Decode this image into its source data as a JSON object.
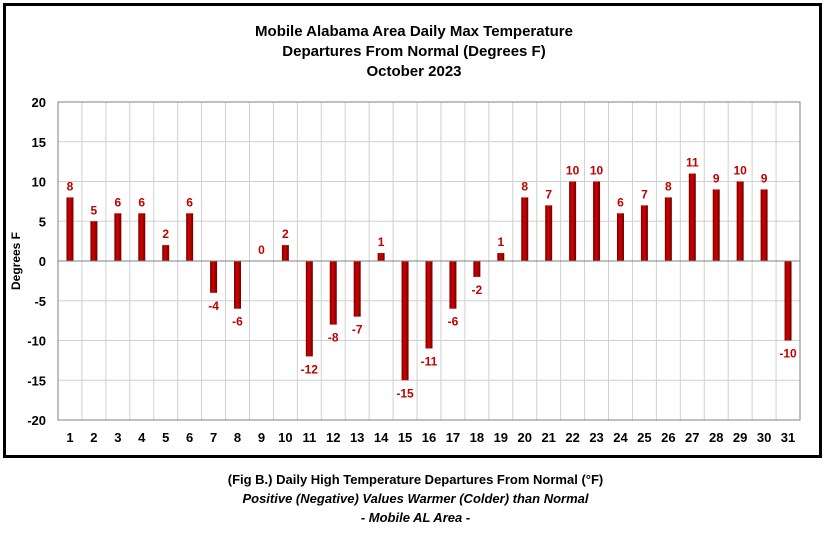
{
  "chart_data": {
    "type": "bar",
    "title": [
      "Mobile Alabama Area Daily Max Temperature",
      "Departures From Normal (Degrees F)",
      "October 2023"
    ],
    "xlabel": "",
    "ylabel": "Degrees F",
    "ylim": [
      -20,
      20
    ],
    "yticks": [
      20,
      15,
      10,
      5,
      0,
      -5,
      -10,
      -15,
      -20
    ],
    "grid": true,
    "legend": "none",
    "categories": [
      "1",
      "2",
      "3",
      "4",
      "5",
      "6",
      "7",
      "8",
      "9",
      "10",
      "11",
      "12",
      "13",
      "14",
      "15",
      "16",
      "17",
      "18",
      "19",
      "20",
      "21",
      "22",
      "23",
      "24",
      "25",
      "26",
      "27",
      "28",
      "29",
      "30",
      "31"
    ],
    "values": [
      8,
      5,
      6,
      6,
      2,
      6,
      -4,
      -6,
      0,
      2,
      -12,
      -8,
      -7,
      1,
      -15,
      -11,
      -6,
      -2,
      1,
      8,
      7,
      10,
      10,
      6,
      7,
      8,
      11,
      9,
      10,
      9,
      -10
    ],
    "bar_color": "#c00000",
    "label_color": "#c00000"
  },
  "caption": {
    "line1": "(Fig B.) Daily High Temperature Departures From Normal (°F)",
    "line2": "Positive (Negative) Values Warmer (Colder) than Normal",
    "line3": "- Mobile AL Area -"
  }
}
